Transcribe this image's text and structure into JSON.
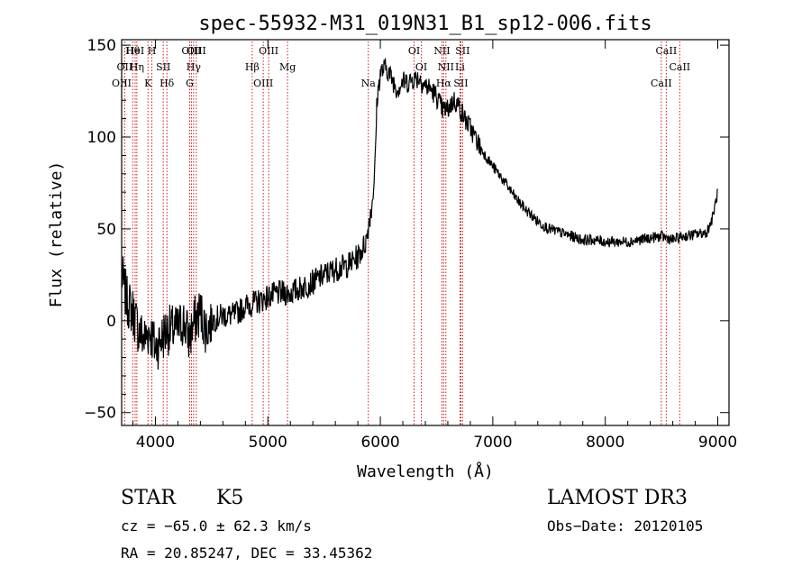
{
  "chart_data": {
    "type": "line",
    "title": "spec-55932-M31_019N31_B1_sp12-006.fits",
    "xlabel": "Wavelength (Å)",
    "ylabel": "Flux (relative)",
    "xlim": [
      3700,
      9100
    ],
    "ylim": [
      -57,
      153
    ],
    "xticks": [
      4000,
      5000,
      6000,
      7000,
      8000,
      9000
    ],
    "xtick_labels": [
      "4000",
      "5000",
      "6000",
      "7000",
      "8000",
      "9000"
    ],
    "yticks": [
      -50,
      0,
      50,
      100,
      150
    ],
    "ytick_labels": [
      "−50",
      "0",
      "50",
      "100",
      "150"
    ],
    "grid": false,
    "line_color": "#000000",
    "marker_color": "#cc0000",
    "series": [
      {
        "name": "flux",
        "x": [
          3700,
          3750,
          3800,
          3850,
          3900,
          3950,
          4000,
          4050,
          4100,
          4150,
          4200,
          4250,
          4300,
          4350,
          4400,
          4450,
          4500,
          4600,
          4700,
          4800,
          4900,
          5000,
          5100,
          5200,
          5300,
          5400,
          5500,
          5600,
          5700,
          5750,
          5800,
          5850,
          5880,
          5900,
          5920,
          5950,
          5970,
          6000,
          6050,
          6100,
          6150,
          6200,
          6250,
          6300,
          6350,
          6400,
          6450,
          6500,
          6550,
          6600,
          6650,
          6700,
          6750,
          6800,
          6900,
          7000,
          7100,
          7200,
          7300,
          7400,
          7500,
          7600,
          7700,
          7800,
          7900,
          8000,
          8100,
          8200,
          8300,
          8400,
          8500,
          8600,
          8700,
          8800,
          8900,
          8950,
          9000
        ],
        "y": [
          25,
          10,
          5,
          -5,
          -10,
          -5,
          -15,
          -10,
          -5,
          -5,
          -5,
          0,
          -10,
          0,
          5,
          -5,
          0,
          3,
          3,
          8,
          10,
          13,
          15,
          15,
          18,
          21,
          25,
          28,
          30,
          32,
          35,
          40,
          45,
          55,
          60,
          80,
          120,
          135,
          138,
          132,
          126,
          130,
          130,
          132,
          132,
          128,
          126,
          122,
          115,
          115,
          120,
          117,
          110,
          105,
          93,
          84,
          76,
          67,
          60,
          54,
          50,
          48,
          46,
          44,
          44,
          43,
          43,
          43,
          44,
          45,
          46,
          44,
          46,
          47,
          48,
          55,
          70
        ]
      }
    ],
    "line_markers": [
      {
        "label": "Hθ",
        "x": 3798
      },
      {
        "label": "OII",
        "x": 3727
      },
      {
        "label": "OIII",
        "x": 3700
      },
      {
        "label": "HeI",
        "x": 3820
      },
      {
        "label": "Hη",
        "x": 3835
      },
      {
        "label": "K",
        "x": 3934
      },
      {
        "label": "H",
        "x": 3969
      },
      {
        "label": "SII",
        "x": 4070
      },
      {
        "label": "Hδ",
        "x": 4102
      },
      {
        "label": "OIII",
        "x": 4320
      },
      {
        "label": "Hγ",
        "x": 4340
      },
      {
        "label": "G",
        "x": 4305
      },
      {
        "label": "OIII",
        "x": 4364
      },
      {
        "label": "Hβ",
        "x": 4861
      },
      {
        "label": "OIII",
        "x": 4959
      },
      {
        "label": "OIII",
        "x": 5007
      },
      {
        "label": "Mg",
        "x": 5175
      },
      {
        "label": "Na",
        "x": 5893
      },
      {
        "label": "OI",
        "x": 6300
      },
      {
        "label": "OI",
        "x": 6364
      },
      {
        "label": "Hα",
        "x": 6563
      },
      {
        "label": "NII",
        "x": 6548
      },
      {
        "label": "NII",
        "x": 6583
      },
      {
        "label": "SII",
        "x": 6716
      },
      {
        "label": "SII",
        "x": 6731
      },
      {
        "label": "Li",
        "x": 6708
      },
      {
        "label": "CaII",
        "x": 8498
      },
      {
        "label": "CaII",
        "x": 8542
      },
      {
        "label": "CaII",
        "x": 8662
      }
    ]
  },
  "info": {
    "class_label": "STAR",
    "subclass_label": "K5",
    "survey_label": "LAMOST DR3",
    "cz_line": "cz = −65.0 ± 62.3 km/s",
    "obs_date_line": "Obs−Date: 20120105",
    "radec_line": "RA =  20.85247, DEC =  33.45362"
  }
}
